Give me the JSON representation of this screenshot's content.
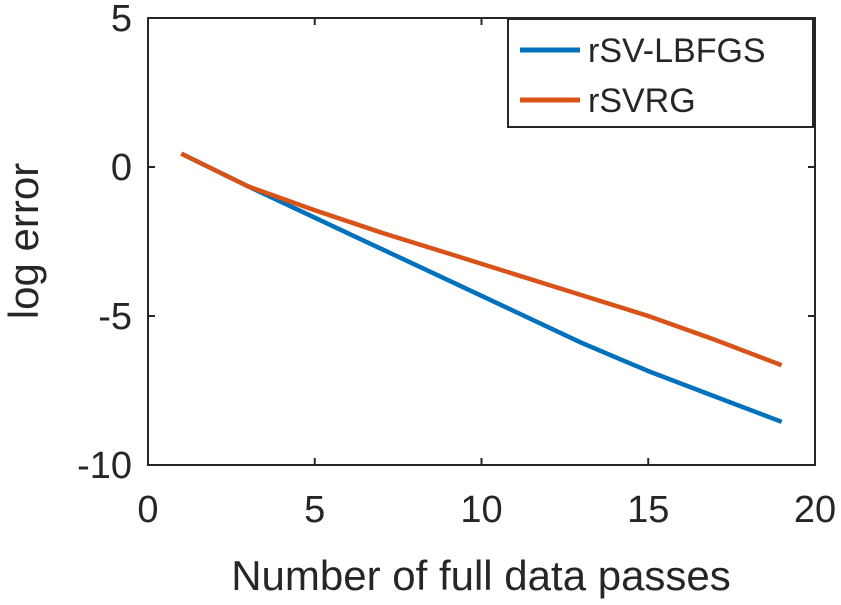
{
  "chart_data": {
    "type": "line",
    "title": "",
    "xlabel": "Number of full data passes",
    "ylabel": "log error",
    "xlim": [
      0,
      20
    ],
    "ylim": [
      -10,
      5
    ],
    "xticks": [
      0,
      5,
      10,
      15,
      20
    ],
    "yticks": [
      5,
      0,
      -5,
      -10
    ],
    "xtick_labels": [
      "0",
      "5",
      "10",
      "15",
      "20"
    ],
    "ytick_labels": [
      "5",
      "0",
      "-5",
      "-10"
    ],
    "grid": false,
    "legend_position": "top-right",
    "series": [
      {
        "name": "rSV-LBFGS",
        "color": "#0072BD",
        "x": [
          1,
          3,
          5,
          7,
          9,
          11,
          13,
          15,
          17,
          19
        ],
        "y": [
          0.45,
          -0.65,
          -1.7,
          -2.75,
          -3.8,
          -4.85,
          -5.9,
          -6.85,
          -7.7,
          -8.55
        ]
      },
      {
        "name": "rSVRG",
        "color": "#D95319",
        "x": [
          1,
          3,
          5,
          7,
          9,
          11,
          13,
          15,
          17,
          19
        ],
        "y": [
          0.45,
          -0.65,
          -1.45,
          -2.2,
          -2.9,
          -3.6,
          -4.3,
          -5.0,
          -5.8,
          -6.65
        ]
      }
    ]
  }
}
